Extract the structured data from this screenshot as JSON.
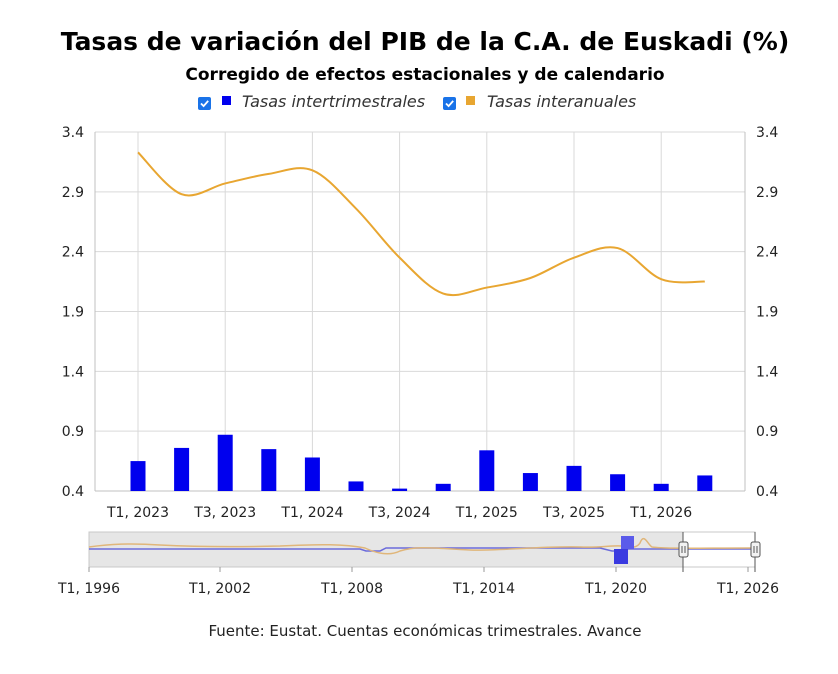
{
  "chart_data": {
    "type": "bar",
    "title": "Tasas de variación del PIB de la C.A. de Euskadi (%)",
    "subtitle": "Corregido de efectos estacionales y de calendario",
    "legend": {
      "placement": "top-center",
      "entries": [
        {
          "label": "Tasas intertrimestrales",
          "checked": true
        },
        {
          "label": "Tasas interanuales",
          "checked": true
        }
      ]
    },
    "x_tick_labels": [
      "T1, 2023",
      "T3, 2023",
      "T1, 2024",
      "T3, 2024",
      "T1, 2025",
      "T3, 2025",
      "T1, 2026"
    ],
    "categories": [
      "T1, 2023",
      "T2, 2023",
      "T3, 2023",
      "T4, 2023",
      "T1, 2024",
      "T2, 2024",
      "T3, 2024",
      "T4, 2024",
      "T1, 2025",
      "T2, 2025",
      "T3, 2025",
      "T4, 2025",
      "T1, 2026",
      "T2, 2026"
    ],
    "ylim": [
      0.4,
      3.4
    ],
    "yticks": [
      "0.4",
      "0.9",
      "1.4",
      "1.9",
      "2.4",
      "2.9",
      "3.4"
    ],
    "grid": true,
    "series": [
      {
        "name": "Tasas intertrimestrales",
        "type": "bar",
        "color": "#0000ee",
        "values": [
          0.65,
          0.76,
          0.87,
          0.75,
          0.68,
          0.48,
          0.42,
          0.46,
          0.74,
          0.55,
          0.61,
          0.54,
          0.46,
          0.53
        ]
      },
      {
        "name": "Tasas interanuales",
        "type": "line",
        "color": "#e8a631",
        "values": [
          3.23,
          2.88,
          2.97,
          3.05,
          3.08,
          2.76,
          2.35,
          2.05,
          2.1,
          2.18,
          2.35,
          2.43,
          2.17,
          2.15
        ]
      }
    ],
    "navigator": {
      "tick_labels": [
        "T1, 1996",
        "T1, 2002",
        "T1, 2008",
        "T1, 2014",
        "T1, 2020",
        "T1, 2026"
      ]
    }
  },
  "source_note": "Fuente: Eustat. Cuentas económicas trimestrales. Avance",
  "colors": {
    "bar": "#0000ee",
    "line": "#e8a631",
    "checkbox": "#1a73e8",
    "navigator_bg": "#e6e6e6"
  }
}
